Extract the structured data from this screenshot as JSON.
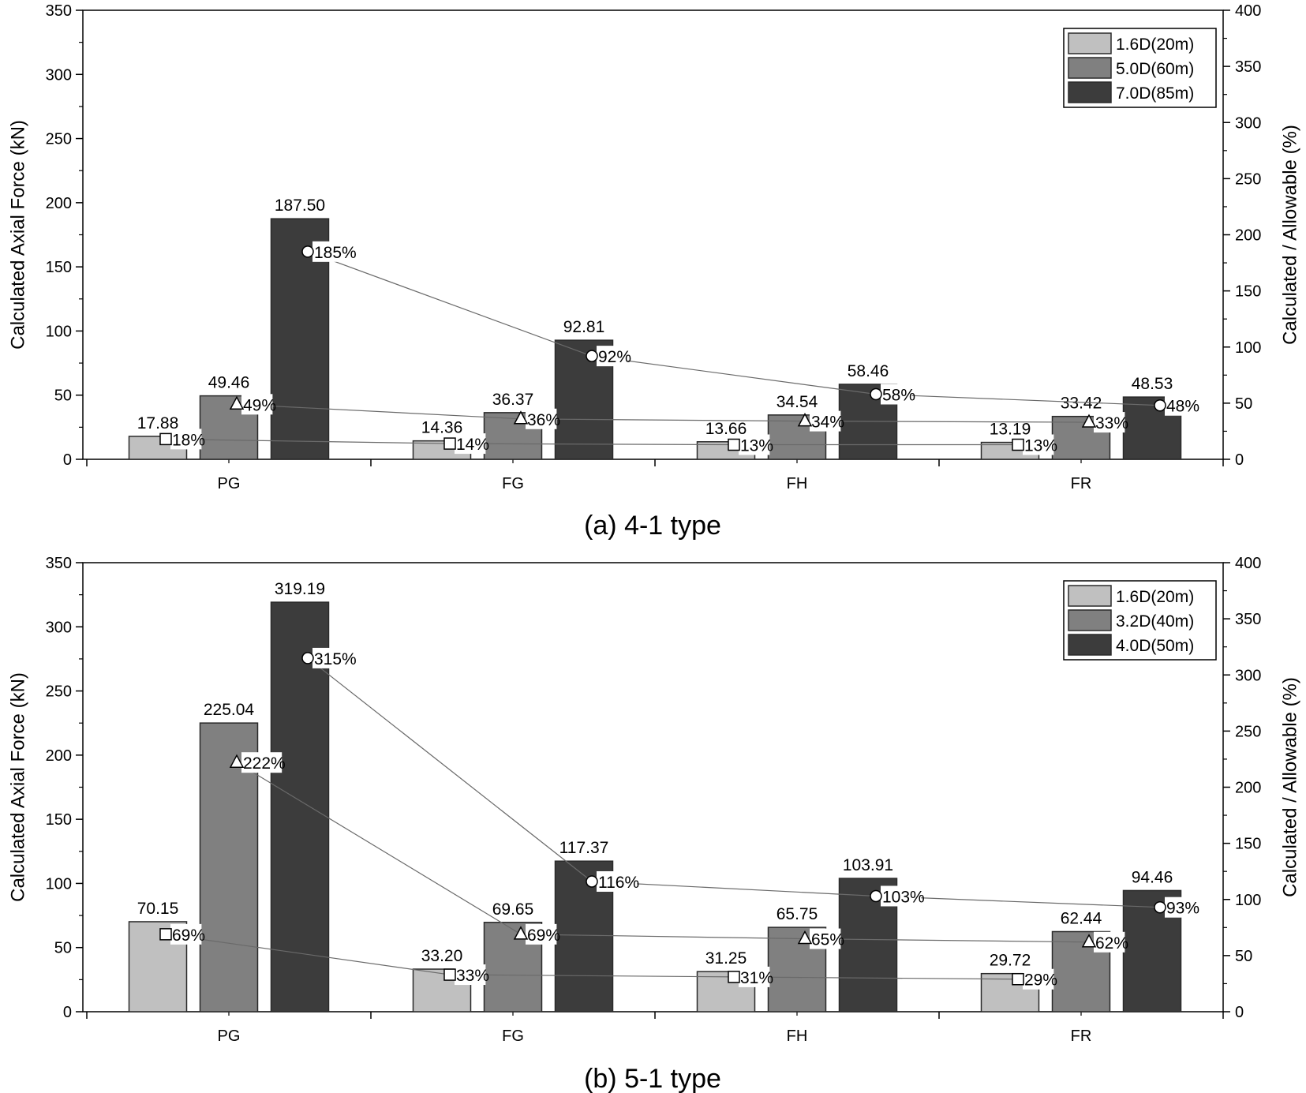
{
  "figure": {
    "captions": [
      "(a) 4-1 type",
      "(b) 5-1 type"
    ]
  },
  "chart_data": [
    {
      "type": "bar",
      "caption": "(a) 4-1 type",
      "categories": [
        "PG",
        "FG",
        "FH",
        "FR"
      ],
      "ylabel": "Calculated Axial Force (kN)",
      "y2label": "Calculated / Allowable (%)",
      "ylim": [
        0,
        350
      ],
      "y2lim": [
        0,
        400
      ],
      "yticks": [
        0,
        50,
        100,
        150,
        200,
        250,
        300,
        350
      ],
      "y2ticks": [
        0,
        50,
        100,
        150,
        200,
        250,
        300,
        350,
        400
      ],
      "legend_position": "top-right",
      "series": [
        {
          "name": "1.6D(20m)",
          "values": [
            17.88,
            14.36,
            13.66,
            13.19
          ],
          "value_labels": [
            "17.88",
            "14.36",
            "13.66",
            "13.19"
          ],
          "ratio": [
            18,
            14,
            13,
            13
          ],
          "ratio_labels": [
            "18%",
            "14%",
            "13%",
            "13%"
          ],
          "marker": "square",
          "color": "#c0c0c0"
        },
        {
          "name": "5.0D(60m)",
          "values": [
            49.46,
            36.37,
            34.54,
            33.42
          ],
          "value_labels": [
            "49.46",
            "36.37",
            "34.54",
            "33.42"
          ],
          "ratio": [
            49,
            36,
            34,
            33
          ],
          "ratio_labels": [
            "49%",
            "36%",
            "34%",
            "33%"
          ],
          "marker": "triangle",
          "color": "#808080"
        },
        {
          "name": "7.0D(85m)",
          "values": [
            187.5,
            92.81,
            58.46,
            48.53
          ],
          "value_labels": [
            "187.50",
            "92.81",
            "58.46",
            "48.53"
          ],
          "ratio": [
            185,
            92,
            58,
            48
          ],
          "ratio_labels": [
            "185%",
            "92%",
            "58%",
            "48%"
          ],
          "marker": "circle",
          "color": "#3c3c3c"
        }
      ]
    },
    {
      "type": "bar",
      "caption": "(b) 5-1 type",
      "categories": [
        "PG",
        "FG",
        "FH",
        "FR"
      ],
      "ylabel": "Calculated Axial Force (kN)",
      "y2label": "Calculated / Allowable (%)",
      "ylim": [
        0,
        350
      ],
      "y2lim": [
        0,
        400
      ],
      "yticks": [
        0,
        50,
        100,
        150,
        200,
        250,
        300,
        350
      ],
      "y2ticks": [
        0,
        50,
        100,
        150,
        200,
        250,
        300,
        350,
        400
      ],
      "legend_position": "top-right",
      "series": [
        {
          "name": "1.6D(20m)",
          "values": [
            70.15,
            33.2,
            31.25,
            29.72
          ],
          "value_labels": [
            "70.15",
            "33.20",
            "31.25",
            "29.72"
          ],
          "ratio": [
            69,
            33,
            31,
            29
          ],
          "ratio_labels": [
            "69%",
            "33%",
            "31%",
            "29%"
          ],
          "marker": "square",
          "color": "#c0c0c0"
        },
        {
          "name": "3.2D(40m)",
          "values": [
            225.04,
            69.65,
            65.75,
            62.44
          ],
          "value_labels": [
            "225.04",
            "69.65",
            "65.75",
            "62.44"
          ],
          "ratio": [
            222,
            69,
            65,
            62
          ],
          "ratio_labels": [
            "222%",
            "69%",
            "65%",
            "62%"
          ],
          "marker": "triangle",
          "color": "#808080"
        },
        {
          "name": "4.0D(50m)",
          "values": [
            319.19,
            117.37,
            103.91,
            94.46
          ],
          "value_labels": [
            "319.19",
            "117.37",
            "103.91",
            "94.46"
          ],
          "ratio": [
            315,
            116,
            103,
            93
          ],
          "ratio_labels": [
            "315%",
            "116%",
            "103%",
            "93%"
          ],
          "marker": "circle",
          "color": "#3c3c3c"
        }
      ]
    }
  ]
}
